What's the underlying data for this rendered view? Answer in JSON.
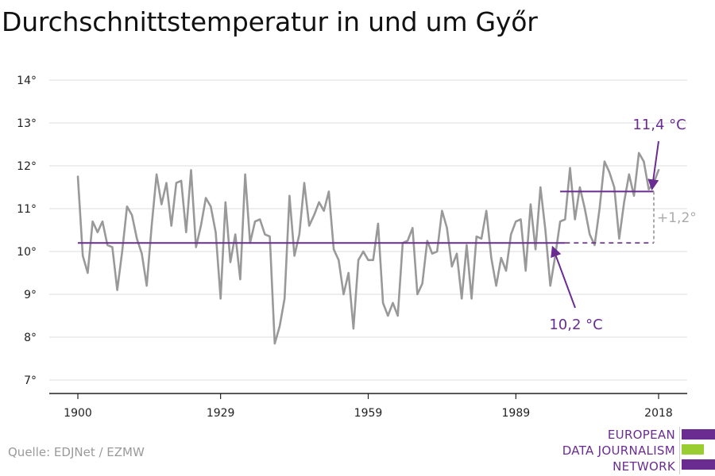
{
  "title": "Durchschnittstemperatur in und um Győr",
  "source": "Quelle: EDJNet / EZMW",
  "logo": {
    "lines": [
      "EUROPEAN",
      "DATA JOURNALISM",
      "NETWORK"
    ],
    "colors": {
      "purple": "#6a2c91",
      "green": "#9acd32"
    }
  },
  "colors": {
    "series": "#999999",
    "reference": "#6a2c91",
    "grid": "#dddddd",
    "axis": "#222222",
    "delta": "#aaaaaa"
  },
  "chart_data": {
    "type": "line",
    "x_ticks": [
      "1900",
      "1929",
      "1959",
      "1989",
      "2018"
    ],
    "y_ticks": [
      "7°",
      "8°",
      "9°",
      "10°",
      "11°",
      "12°",
      "13°",
      "14°"
    ],
    "xlim": [
      1900,
      2018
    ],
    "ylim": [
      7,
      14
    ],
    "grid": true,
    "x": [
      1900,
      1901,
      1902,
      1903,
      1904,
      1905,
      1906,
      1907,
      1908,
      1909,
      1910,
      1911,
      1912,
      1913,
      1914,
      1915,
      1916,
      1917,
      1918,
      1919,
      1920,
      1921,
      1922,
      1923,
      1924,
      1925,
      1926,
      1927,
      1928,
      1929,
      1930,
      1931,
      1932,
      1933,
      1934,
      1935,
      1936,
      1937,
      1938,
      1939,
      1940,
      1941,
      1942,
      1943,
      1944,
      1945,
      1946,
      1947,
      1948,
      1949,
      1950,
      1951,
      1952,
      1953,
      1954,
      1955,
      1956,
      1957,
      1958,
      1959,
      1960,
      1961,
      1962,
      1963,
      1964,
      1965,
      1966,
      1967,
      1968,
      1969,
      1970,
      1971,
      1972,
      1973,
      1974,
      1975,
      1976,
      1977,
      1978,
      1979,
      1980,
      1981,
      1982,
      1983,
      1984,
      1985,
      1986,
      1987,
      1988,
      1989,
      1990,
      1991,
      1992,
      1993,
      1994,
      1995,
      1996,
      1997,
      1998,
      1999,
      2000,
      2001,
      2002,
      2003,
      2004,
      2005,
      2006,
      2007,
      2008,
      2009,
      2010,
      2011,
      2012,
      2013,
      2014,
      2015,
      2016,
      2017,
      2018
    ],
    "values": [
      11.75,
      9.9,
      9.5,
      10.7,
      10.45,
      10.7,
      10.15,
      10.1,
      9.1,
      10.0,
      11.05,
      10.85,
      10.3,
      9.95,
      9.2,
      10.6,
      11.8,
      11.1,
      11.6,
      10.6,
      11.6,
      11.65,
      10.45,
      11.9,
      10.1,
      10.6,
      11.25,
      11.05,
      10.45,
      8.9,
      11.15,
      9.75,
      10.4,
      9.35,
      11.8,
      10.2,
      10.7,
      10.75,
      10.4,
      10.35,
      7.85,
      8.25,
      8.9,
      11.3,
      9.9,
      10.4,
      11.6,
      10.6,
      10.85,
      11.15,
      10.95,
      11.4,
      10.05,
      9.8,
      9.0,
      9.5,
      8.2,
      9.8,
      10.0,
      9.8,
      9.8,
      10.65,
      8.8,
      8.5,
      8.8,
      8.5,
      10.2,
      10.25,
      10.55,
      9.0,
      9.25,
      10.25,
      9.95,
      10.0,
      10.95,
      10.55,
      9.65,
      9.95,
      8.9,
      10.15,
      8.9,
      10.35,
      10.3,
      10.95,
      9.85,
      9.2,
      9.85,
      9.55,
      10.4,
      10.7,
      10.75,
      9.55,
      11.1,
      10.05,
      11.5,
      10.5,
      9.2,
      9.9,
      10.7,
      10.75,
      11.95,
      10.75,
      11.5,
      11.0,
      10.4,
      10.15,
      11.0,
      12.1,
      11.85,
      11.5,
      10.3,
      11.15,
      11.8,
      11.3,
      12.3,
      12.1,
      11.45,
      11.6,
      11.9
    ],
    "reference_lines": [
      {
        "label": "10,2 °C",
        "value": 10.2
      },
      {
        "label": "11,4 °C",
        "value": 11.4
      }
    ],
    "difference_label": "+1,2°"
  }
}
